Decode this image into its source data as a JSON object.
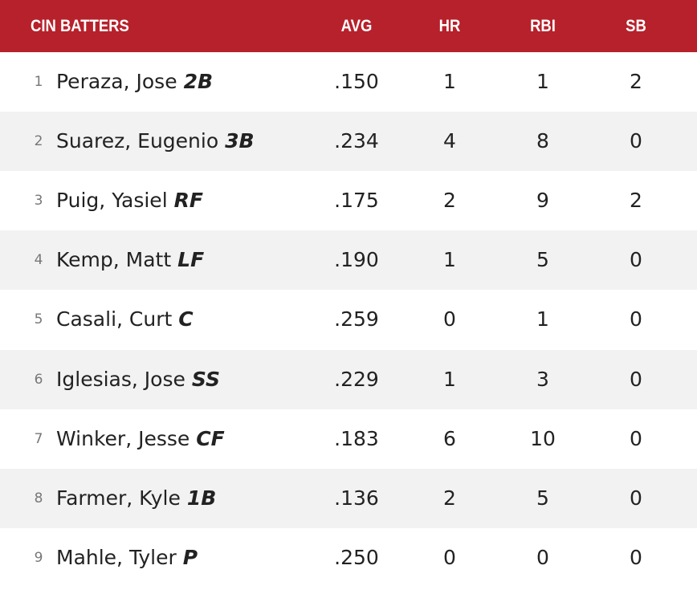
{
  "table": {
    "headers": [
      "CIN BATTERS",
      "AVG",
      "HR",
      "RBI",
      "SB"
    ],
    "rows": [
      [
        1,
        "Peraza, Jose",
        "2B",
        ".150",
        1,
        1,
        2
      ],
      [
        2,
        "Suarez, Eugenio",
        "3B",
        ".234",
        4,
        8,
        0
      ],
      [
        3,
        "Puig, Yasiel",
        "RF",
        ".175",
        2,
        9,
        2
      ],
      [
        4,
        "Kemp, Matt",
        "LF",
        ".190",
        1,
        5,
        0
      ],
      [
        5,
        "Casali, Curt",
        "C",
        ".259",
        0,
        1,
        0
      ],
      [
        6,
        "Iglesias, Jose",
        "SS",
        ".229",
        1,
        3,
        0
      ],
      [
        7,
        "Winker, Jesse",
        "CF",
        ".183",
        6,
        10,
        0
      ],
      [
        8,
        "Farmer, Kyle",
        "1B",
        ".136",
        2,
        5,
        0
      ],
      [
        9,
        "Mahle, Tyler",
        "P",
        ".250",
        0,
        0,
        0
      ]
    ]
  }
}
